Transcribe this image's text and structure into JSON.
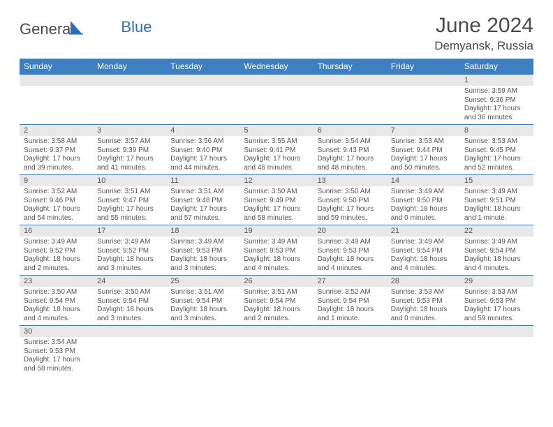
{
  "logo": {
    "text1": "Genera",
    "text2": "Blue"
  },
  "title": {
    "month": "June 2024",
    "location": "Demyansk, Russia"
  },
  "colors": {
    "header_bg": "#3d7fc1",
    "header_text": "#ffffff",
    "daynum_bg": "#e8e8e8",
    "text_color": "#555555",
    "rule_color": "#3d7fc1",
    "logo_blue": "#2d6fb5",
    "logo_gray": "#4a4a4a"
  },
  "daynames": [
    "Sunday",
    "Monday",
    "Tuesday",
    "Wednesday",
    "Thursday",
    "Friday",
    "Saturday"
  ],
  "weeks": [
    [
      null,
      null,
      null,
      null,
      null,
      null,
      {
        "n": "1",
        "sr": "3:59 AM",
        "ss": "9:36 PM",
        "dl": "17 hours and 36 minutes."
      }
    ],
    [
      {
        "n": "2",
        "sr": "3:58 AM",
        "ss": "9:37 PM",
        "dl": "17 hours and 39 minutes."
      },
      {
        "n": "3",
        "sr": "3:57 AM",
        "ss": "9:39 PM",
        "dl": "17 hours and 41 minutes."
      },
      {
        "n": "4",
        "sr": "3:56 AM",
        "ss": "9:40 PM",
        "dl": "17 hours and 44 minutes."
      },
      {
        "n": "5",
        "sr": "3:55 AM",
        "ss": "9:41 PM",
        "dl": "17 hours and 46 minutes."
      },
      {
        "n": "6",
        "sr": "3:54 AM",
        "ss": "9:43 PM",
        "dl": "17 hours and 48 minutes."
      },
      {
        "n": "7",
        "sr": "3:53 AM",
        "ss": "9:44 PM",
        "dl": "17 hours and 50 minutes."
      },
      {
        "n": "8",
        "sr": "3:53 AM",
        "ss": "9:45 PM",
        "dl": "17 hours and 52 minutes."
      }
    ],
    [
      {
        "n": "9",
        "sr": "3:52 AM",
        "ss": "9:46 PM",
        "dl": "17 hours and 54 minutes."
      },
      {
        "n": "10",
        "sr": "3:51 AM",
        "ss": "9:47 PM",
        "dl": "17 hours and 55 minutes."
      },
      {
        "n": "11",
        "sr": "3:51 AM",
        "ss": "9:48 PM",
        "dl": "17 hours and 57 minutes."
      },
      {
        "n": "12",
        "sr": "3:50 AM",
        "ss": "9:49 PM",
        "dl": "17 hours and 58 minutes."
      },
      {
        "n": "13",
        "sr": "3:50 AM",
        "ss": "9:50 PM",
        "dl": "17 hours and 59 minutes."
      },
      {
        "n": "14",
        "sr": "3:49 AM",
        "ss": "9:50 PM",
        "dl": "18 hours and 0 minutes."
      },
      {
        "n": "15",
        "sr": "3:49 AM",
        "ss": "9:51 PM",
        "dl": "18 hours and 1 minute."
      }
    ],
    [
      {
        "n": "16",
        "sr": "3:49 AM",
        "ss": "9:52 PM",
        "dl": "18 hours and 2 minutes."
      },
      {
        "n": "17",
        "sr": "3:49 AM",
        "ss": "9:52 PM",
        "dl": "18 hours and 3 minutes."
      },
      {
        "n": "18",
        "sr": "3:49 AM",
        "ss": "9:53 PM",
        "dl": "18 hours and 3 minutes."
      },
      {
        "n": "19",
        "sr": "3:49 AM",
        "ss": "9:53 PM",
        "dl": "18 hours and 4 minutes."
      },
      {
        "n": "20",
        "sr": "3:49 AM",
        "ss": "9:53 PM",
        "dl": "18 hours and 4 minutes."
      },
      {
        "n": "21",
        "sr": "3:49 AM",
        "ss": "9:54 PM",
        "dl": "18 hours and 4 minutes."
      },
      {
        "n": "22",
        "sr": "3:49 AM",
        "ss": "9:54 PM",
        "dl": "18 hours and 4 minutes."
      }
    ],
    [
      {
        "n": "23",
        "sr": "3:50 AM",
        "ss": "9:54 PM",
        "dl": "18 hours and 4 minutes."
      },
      {
        "n": "24",
        "sr": "3:50 AM",
        "ss": "9:54 PM",
        "dl": "18 hours and 3 minutes."
      },
      {
        "n": "25",
        "sr": "3:51 AM",
        "ss": "9:54 PM",
        "dl": "18 hours and 3 minutes."
      },
      {
        "n": "26",
        "sr": "3:51 AM",
        "ss": "9:54 PM",
        "dl": "18 hours and 2 minutes."
      },
      {
        "n": "27",
        "sr": "3:52 AM",
        "ss": "9:54 PM",
        "dl": "18 hours and 1 minute."
      },
      {
        "n": "28",
        "sr": "3:53 AM",
        "ss": "9:53 PM",
        "dl": "18 hours and 0 minutes."
      },
      {
        "n": "29",
        "sr": "3:53 AM",
        "ss": "9:53 PM",
        "dl": "17 hours and 59 minutes."
      }
    ],
    [
      {
        "n": "30",
        "sr": "3:54 AM",
        "ss": "9:53 PM",
        "dl": "17 hours and 58 minutes."
      },
      null,
      null,
      null,
      null,
      null,
      null
    ]
  ],
  "labels": {
    "sunrise": "Sunrise: ",
    "sunset": "Sunset: ",
    "daylight": "Daylight: "
  }
}
